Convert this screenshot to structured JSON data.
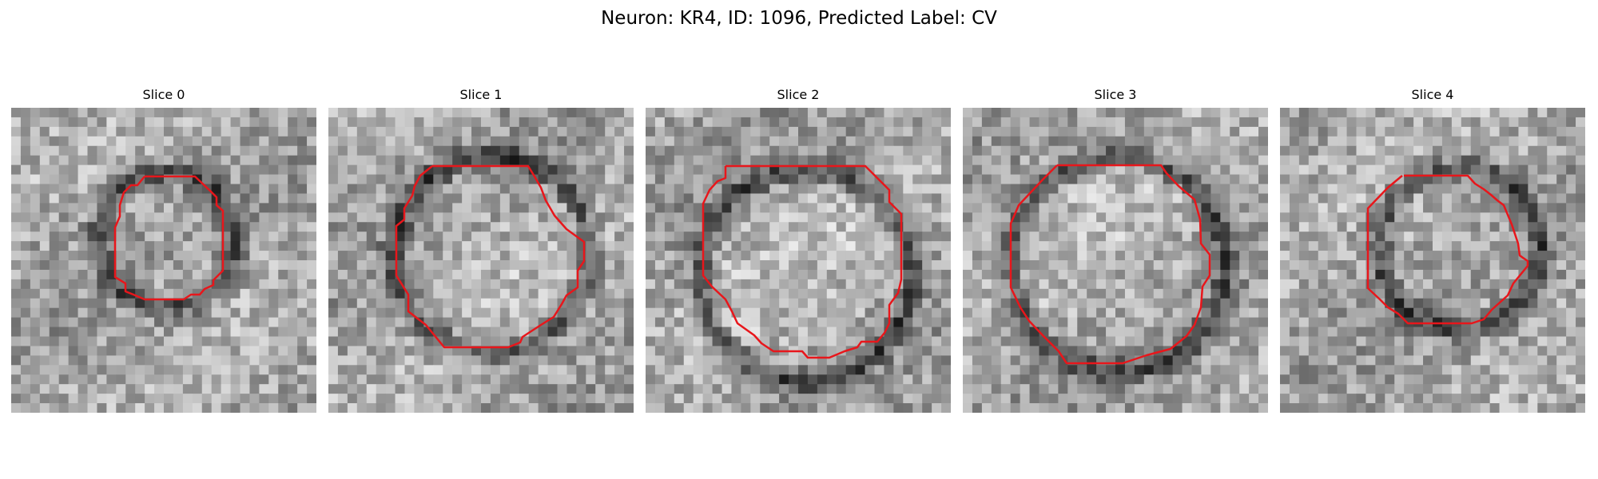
{
  "figure": {
    "title": "Neuron: KR4, ID: 1096, Predicted Label: CV"
  },
  "panels": [
    {
      "title": "Slice 0"
    },
    {
      "title": "Slice 1"
    },
    {
      "title": "Slice 2"
    },
    {
      "title": "Slice 3"
    },
    {
      "title": "Slice 4"
    }
  ],
  "colors": {
    "contour": "#e8161b",
    "background": "#ffffff"
  }
}
